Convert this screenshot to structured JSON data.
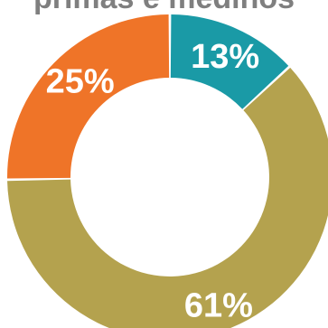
{
  "chart_data": {
    "type": "pie",
    "title": "primas e mediños",
    "categories": [
      "",
      "",
      ""
    ],
    "values": [
      13,
      61,
      25
    ],
    "labels": [
      "13%",
      "61%",
      "25%"
    ],
    "colors": [
      "#1a9aa6",
      "#b4a24e",
      "#ef7428"
    ]
  }
}
